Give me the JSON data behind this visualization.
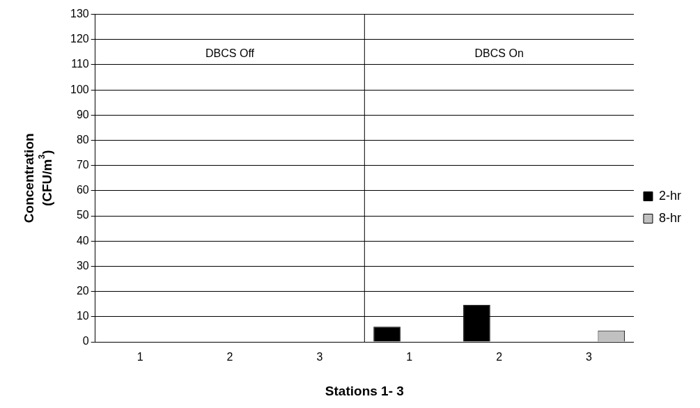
{
  "chart_data": {
    "type": "bar",
    "xlabel": "Stations 1- 3",
    "ylabel": "Concentration (CFU/m$^{3}$)",
    "categories": [
      "1",
      "2",
      "3",
      "1",
      "2",
      "3"
    ],
    "series": [
      {
        "name": "2-hr",
        "color": "#000000",
        "values": [
          0,
          0,
          0,
          6,
          14.7,
          0
        ]
      },
      {
        "name": "8-hr",
        "color": "#c0c0c0",
        "values": [
          0,
          0,
          0,
          0,
          0,
          4.5
        ]
      }
    ],
    "ylim": [
      0,
      130
    ],
    "yticks": [
      0,
      10,
      20,
      30,
      40,
      50,
      60,
      70,
      80,
      90,
      100,
      110,
      120,
      130
    ],
    "grid": "y",
    "legend": "right",
    "annotations": [
      "DBCS Off",
      "DBCS On"
    ]
  }
}
